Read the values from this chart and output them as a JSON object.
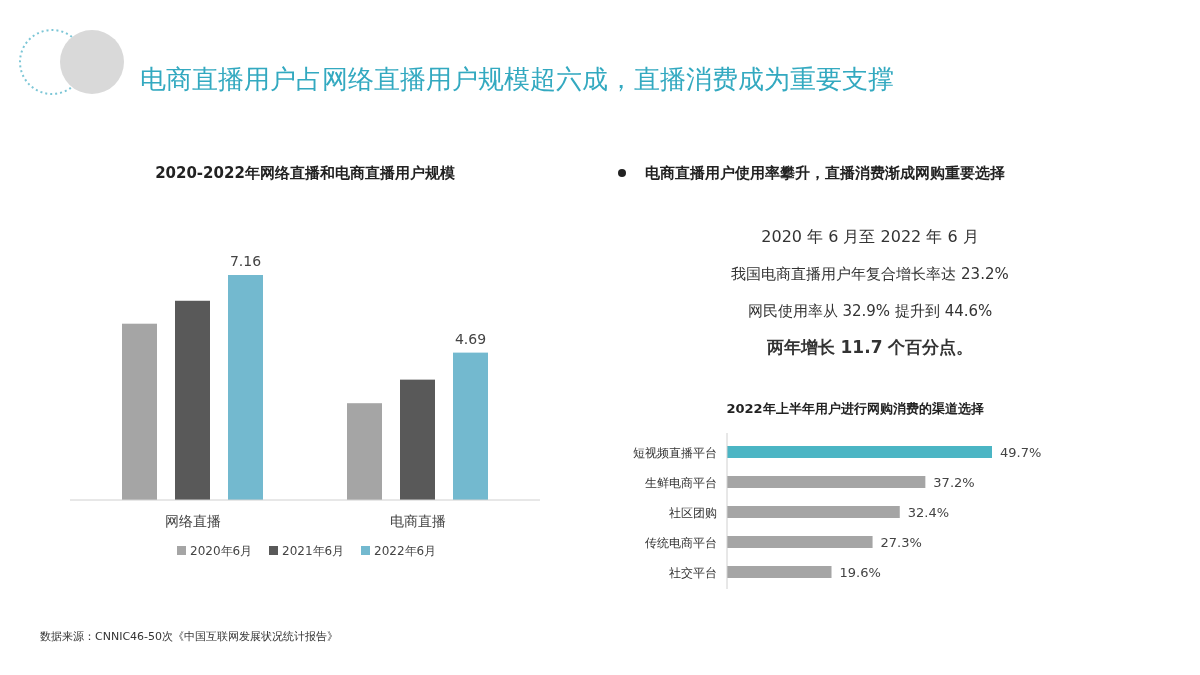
{
  "chart_data": [
    {
      "type": "other",
      "title": "电商直播用户占网络直播用户规模超六成，直播消费成为重要支撑"
    },
    {
      "type": "bar",
      "title": "2020-2022年网络直播和电商直播用户规模",
      "categories": [
        "网络直播",
        "电商直播"
      ],
      "legend": "bottom",
      "series": [
        {
          "name": "2020年6月",
          "color": "#a5a5a5",
          "values": [
            5.61,
            3.08
          ]
        },
        {
          "name": "2021年6月",
          "color": "#595959",
          "values": [
            6.34,
            3.83
          ]
        },
        {
          "name": "2022年6月",
          "color": "#73b9cf",
          "values": [
            7.16,
            4.69
          ],
          "value_labels": [
            "7.16",
            "4.69"
          ]
        }
      ],
      "annotations": [
        "数据来源：CNNIC46-50次《中国互联网发展状况统计报告》"
      ]
    },
    {
      "type": "other",
      "title": "电商直播用户使用率攀升，直播消费渐成网购重要选择",
      "annotations": [
        "2020 年 6 月至 2022 年 6 月",
        "我国电商直播用户年复合增长率达 23.2%",
        "网民使用率从 32.9% 提升到 44.6%",
        "两年增长 11.7 个百分点。"
      ]
    },
    {
      "type": "bar",
      "orientation": "horizontal",
      "title": "2022年上半年用户进行网购消费的渠道选择",
      "categories": [
        "短视频直播平台",
        "生鲜电商平台",
        "社区团购",
        "传统电商平台",
        "社交平台"
      ],
      "values": [
        49.7,
        37.2,
        32.4,
        27.3,
        19.6
      ],
      "colors": [
        "#4bb5c4",
        "#a5a5a5",
        "#a5a5a5",
        "#a5a5a5",
        "#a5a5a5"
      ],
      "value_labels": [
        "49.7%",
        "37.2%",
        "32.4%",
        "27.3%",
        "19.6%"
      ]
    }
  ]
}
